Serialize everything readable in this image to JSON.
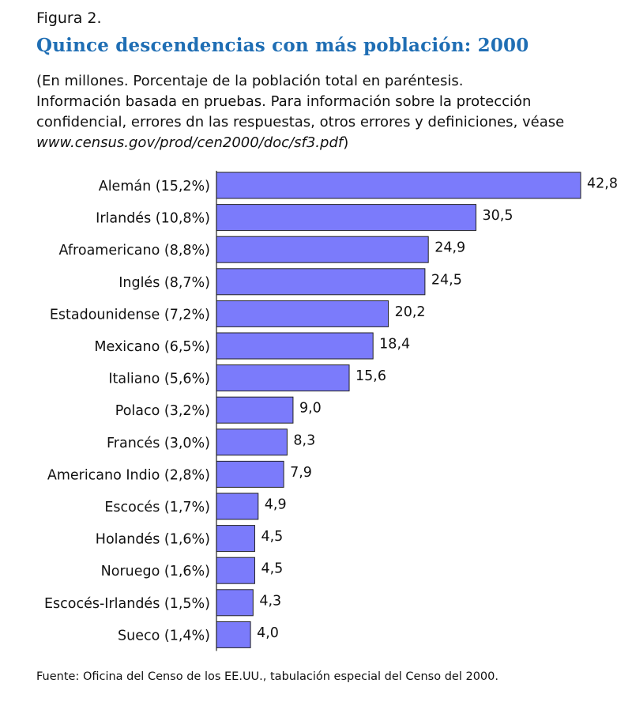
{
  "figure_label": "Figura 2.",
  "subtitle": {
    "line1": "(En millones. Porcentaje de la población total en paréntesis.",
    "line2": "Información basada en pruebas. Para información sobre la protección",
    "line3": "confidencial, errores dn las respuestas, otros errores y definiciones, véase",
    "url": "www.census.gov/prod/cen2000/doc/sf3.pdf",
    "close": ")"
  },
  "footer": "Fuente: Oficina del Censo de los EE.UU., tabulación especial del Censo del 2000.",
  "chart_data": {
    "type": "bar",
    "orientation": "horizontal",
    "title": "Quince descendencias con más población: 2000",
    "categories": [
      "Alemán (15,2%)",
      "Irlandés (10,8%)",
      "Afroamericano (8,8%)",
      "Inglés (8,7%)",
      "Estadounidense (7,2%)",
      "Mexicano (6,5%)",
      "Italiano (5,6%)",
      "Polaco (3,2%)",
      "Francés (3,0%)",
      "Americano Indio (2,8%)",
      "Escocés (1,7%)",
      "Holandés (1,6%)",
      "Noruego (1,6%)",
      "Escocés-Irlandés (1,5%)",
      "Sueco (1,4%)"
    ],
    "values": [
      42.8,
      30.5,
      24.9,
      24.5,
      20.2,
      18.4,
      15.6,
      9.0,
      8.3,
      7.9,
      4.9,
      4.5,
      4.5,
      4.3,
      4.0
    ],
    "value_labels": [
      "42,8",
      "30,5",
      "24,9",
      "24,5",
      "20,2",
      "18,4",
      "15,6",
      "9,0",
      "8,3",
      "7,9",
      "4,9",
      "4,5",
      "4,5",
      "4,3",
      "4,0"
    ],
    "xlim": [
      0,
      42.8
    ],
    "xlabel": "",
    "ylabel": "",
    "grid": false,
    "bar_color": "#7b7bfb",
    "bar_stroke": "#222222"
  }
}
